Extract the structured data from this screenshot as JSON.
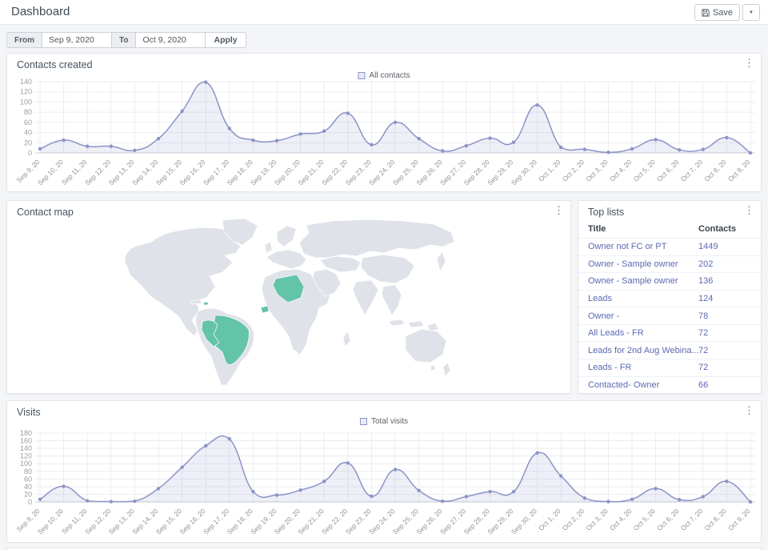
{
  "header": {
    "title": "Dashboard",
    "save_label": "Save"
  },
  "icons": {
    "kebab": "⋮",
    "caret": "▼"
  },
  "filters": {
    "from_label": "From",
    "from_value": "Sep 9, 2020",
    "to_label": "To",
    "to_value": "Oct 9, 2020",
    "apply_label": "Apply"
  },
  "panels": {
    "contacts_created": {
      "title": "Contacts created",
      "legend": "All contacts"
    },
    "contact_map": {
      "title": "Contact map",
      "land_color": "#dfe2e8",
      "highlight_color": "#63c4a8",
      "highlighted_countries": [
        "Brazil",
        "Peru",
        "Haiti",
        "Algeria",
        "Senegal"
      ]
    },
    "top_lists": {
      "title": "Top lists",
      "columns": {
        "title": "Title",
        "contacts": "Contacts"
      },
      "rows": [
        {
          "title": "Owner not FC or PT",
          "contacts": "1449"
        },
        {
          "title": "Owner - Sample owner",
          "contacts": "202"
        },
        {
          "title": "Owner - Sample owner",
          "contacts": "136"
        },
        {
          "title": "Leads",
          "contacts": "124"
        },
        {
          "title": "Owner -",
          "contacts": "78"
        },
        {
          "title": "All Leads - FR",
          "contacts": "72"
        },
        {
          "title": "Leads for 2nd Aug Webina...",
          "contacts": "72"
        },
        {
          "title": "Leads - FR",
          "contacts": "72"
        },
        {
          "title": "Contacted- Owner",
          "contacts": "66"
        }
      ]
    },
    "visits": {
      "title": "Visits",
      "legend": "Total visits"
    }
  },
  "colors": {
    "line": "#8b94c6",
    "fill_opacity": 0.15
  },
  "chart_data": [
    {
      "type": "area",
      "title": "Contacts created",
      "legend_position": "top-center",
      "grid": true,
      "ylim": [
        0,
        140
      ],
      "ytick_step": 20,
      "categories": [
        "Sep 9, 20",
        "Sep 10, 20",
        "Sep 11, 20",
        "Sep 12, 20",
        "Sep 13, 20",
        "Sep 14, 20",
        "Sep 15, 20",
        "Sep 16, 20",
        "Sep 17, 20",
        "Sep 18, 20",
        "Sep 19, 20",
        "Sep 20, 20",
        "Sep 21, 20",
        "Sep 22, 20",
        "Sep 23, 20",
        "Sep 24, 20",
        "Sep 25, 20",
        "Sep 26, 20",
        "Sep 27, 20",
        "Sep 28, 20",
        "Sep 29, 20",
        "Sep 30, 20",
        "Oct 1, 20",
        "Oct 2, 20",
        "Oct 3, 20",
        "Oct 4, 20",
        "Oct 5, 20",
        "Oct 6, 20",
        "Oct 7, 20",
        "Oct 8, 20",
        "Oct 9, 20"
      ],
      "series": [
        {
          "name": "All contacts",
          "values": [
            8,
            25,
            13,
            13,
            5,
            28,
            82,
            139,
            48,
            25,
            24,
            37,
            43,
            78,
            16,
            60,
            28,
            4,
            14,
            29,
            21,
            94,
            11,
            7,
            1,
            8,
            26,
            6,
            7,
            30,
            0
          ]
        }
      ]
    },
    {
      "type": "area",
      "title": "Visits",
      "legend_position": "top-center",
      "grid": true,
      "ylim": [
        0,
        180
      ],
      "ytick_step": 20,
      "categories": [
        "Sep 9, 20",
        "Sep 10, 20",
        "Sep 11, 20",
        "Sep 12, 20",
        "Sep 13, 20",
        "Sep 14, 20",
        "Sep 15, 20",
        "Sep 16, 20",
        "Sep 17, 20",
        "Sep 18, 20",
        "Sep 19, 20",
        "Sep 20, 20",
        "Sep 21, 20",
        "Sep 22, 20",
        "Sep 23, 20",
        "Sep 24, 20",
        "Sep 25, 20",
        "Sep 26, 20",
        "Sep 27, 20",
        "Sep 28, 20",
        "Sep 29, 20",
        "Sep 30, 20",
        "Oct 1, 20",
        "Oct 2, 20",
        "Oct 3, 20",
        "Oct 4, 20",
        "Oct 5, 20",
        "Oct 6, 20",
        "Oct 7, 20",
        "Oct 8, 20",
        "Oct 9, 20"
      ],
      "series": [
        {
          "name": "Total visits",
          "values": [
            7,
            41,
            3,
            1,
            2,
            35,
            91,
            147,
            165,
            27,
            18,
            31,
            54,
            102,
            15,
            85,
            30,
            2,
            14,
            27,
            27,
            128,
            68,
            10,
            1,
            7,
            35,
            6,
            14,
            54,
            0
          ]
        }
      ]
    }
  ]
}
